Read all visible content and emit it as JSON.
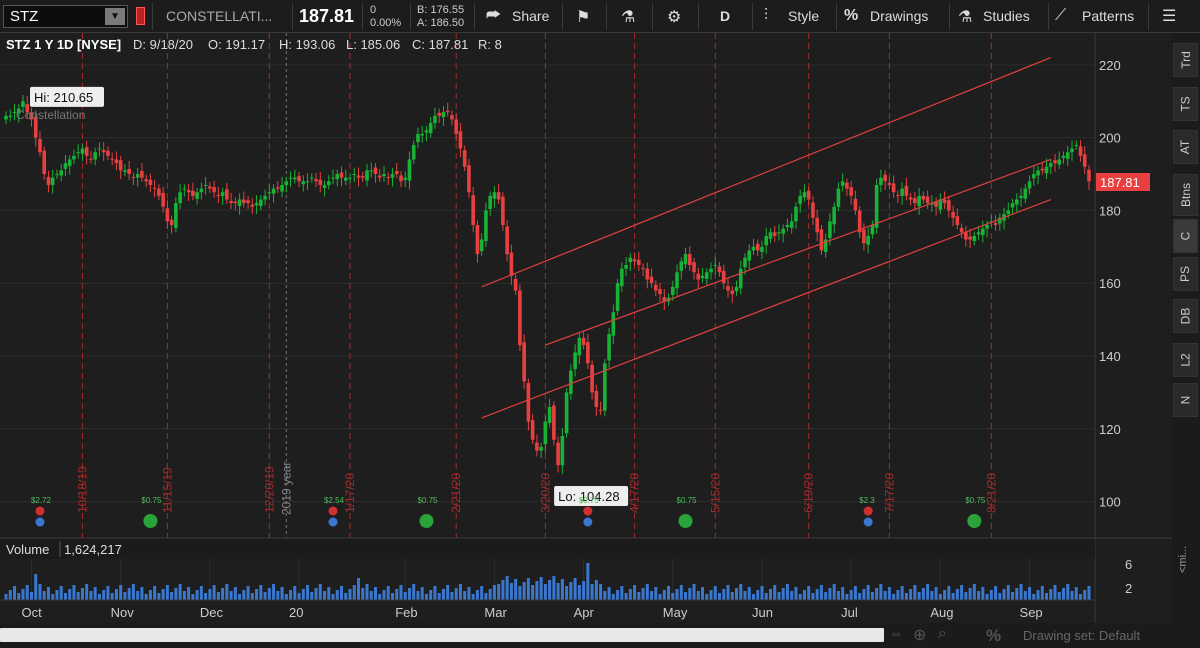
{
  "toolbar": {
    "symbol": "STZ",
    "company": "CONSTELLATI...",
    "last": "187.81",
    "change": "0",
    "change_pct": "0.00%",
    "bid": "B: 176.55",
    "ask": "A: 186.50",
    "share_label": "Share",
    "timeframe": "D",
    "style_label": "Style",
    "drawings_label": "Drawings",
    "studies_label": "Studies",
    "patterns_label": "Patterns"
  },
  "info": {
    "title": "STZ 1 Y 1D [NYSE]",
    "date": "D: 9/18/20",
    "open": "O: 191.17",
    "high": "H: 193.06",
    "low": "L: 185.06",
    "close": "C: 187.81",
    "range": "R: 8"
  },
  "rail": [
    "Trd",
    "TS",
    "AT",
    "Btns",
    "C",
    "PS",
    "DB",
    "L2",
    "N"
  ],
  "chart_data": {
    "type": "candlestick",
    "title": "STZ 1 Y 1D [NYSE]",
    "price_axis": [
      220,
      200,
      180,
      160,
      140,
      120,
      100
    ],
    "ylim": [
      90,
      226
    ],
    "last_price": "187.81",
    "hi_label": "Hi: 210.65",
    "lo_label": "Lo: 104.28",
    "watermark": "Constellation",
    "year_marker": "2019 year",
    "x_months": [
      "Oct",
      "Nov",
      "Dec",
      "20",
      "Feb",
      "Mar",
      "Apr",
      "May",
      "Jun",
      "Jul",
      "Aug",
      "Sep"
    ],
    "event_dates": [
      "10/18/19",
      "11/15/19",
      "12/20/19",
      "1/17/20",
      "2/21/20",
      "3/20/20",
      "4/17/20",
      "5/15/20",
      "6/19/20",
      "7/17/20",
      "8/21/20"
    ],
    "dividends": [
      {
        "label": "$2.72",
        "type": "earnings"
      },
      {
        "label": "$0.75",
        "type": "dividend"
      },
      {
        "label": "$2.54",
        "type": "earnings"
      },
      {
        "label": "$0.75",
        "type": "dividend"
      },
      {
        "label": "$0.75",
        "type": "earnings"
      },
      {
        "label": "$0.75",
        "type": "dividend"
      },
      {
        "label": "$2.3",
        "type": "earnings"
      },
      {
        "label": "$0.75",
        "type": "dividend"
      }
    ],
    "closes": [
      206,
      206,
      207,
      208,
      210,
      207,
      205,
      200,
      196,
      190,
      187,
      189,
      190,
      191,
      193,
      194,
      195,
      196,
      197,
      195,
      194,
      196,
      197,
      196,
      195,
      194,
      193,
      191,
      191,
      190,
      189,
      190,
      189,
      188,
      187,
      186,
      184,
      181,
      177,
      176,
      182,
      185,
      186,
      185,
      184,
      185,
      186,
      187,
      186,
      185,
      184,
      185,
      183,
      182,
      182,
      183,
      182,
      182,
      181,
      182,
      183,
      184,
      185,
      186,
      186,
      187,
      188,
      189,
      189,
      188,
      188,
      188,
      189,
      188,
      187,
      187,
      188,
      189,
      190,
      189,
      189,
      189,
      190,
      189,
      189,
      191,
      191,
      190,
      189,
      190,
      189,
      190,
      190,
      188,
      189,
      194,
      198,
      201,
      201,
      202,
      204,
      206,
      206,
      207,
      207,
      205,
      201,
      197,
      192,
      185,
      176,
      168,
      172,
      180,
      184,
      185,
      183,
      176,
      168,
      162,
      158,
      143,
      133,
      122,
      117,
      114,
      115,
      122,
      126,
      117,
      110,
      118,
      130,
      136,
      141,
      145,
      143,
      138,
      130,
      126,
      125,
      138,
      146,
      152,
      160,
      164,
      165,
      167,
      166,
      165,
      164,
      161,
      160,
      158,
      157,
      155,
      156,
      159,
      163,
      166,
      168,
      165,
      163,
      161,
      162,
      163,
      164,
      165,
      163,
      160,
      158,
      157,
      159,
      164,
      167,
      169,
      170,
      169,
      170,
      173,
      174,
      173,
      174,
      175,
      176,
      177,
      181,
      184,
      185,
      183,
      178,
      174,
      169,
      172,
      177,
      181,
      186,
      188,
      186,
      184,
      180,
      174,
      171,
      173,
      176,
      187,
      189,
      188,
      187,
      185,
      184,
      186,
      184,
      183,
      182,
      184,
      183,
      182,
      182,
      181,
      183,
      182,
      180,
      178,
      176,
      174,
      172,
      172,
      173,
      174,
      175,
      176,
      177,
      176,
      178,
      179,
      180,
      182,
      183,
      184,
      186,
      188,
      190,
      191,
      191,
      192,
      193,
      193,
      194,
      195,
      196,
      197,
      198,
      195,
      192,
      188
    ],
    "volume_axis": [
      "6",
      "2"
    ],
    "volume_label": "Volume",
    "volume_value": "1,624,217",
    "channel_lines": [
      {
        "from": [
          112,
          159
        ],
        "to": [
          246,
          222
        ]
      },
      {
        "from": [
          112,
          123
        ],
        "to": [
          246,
          183
        ]
      },
      {
        "from": [
          127,
          143
        ],
        "to": [
          246,
          194
        ]
      }
    ]
  },
  "bottom": {
    "drawing_set": "Drawing set: Default",
    "percent_label": "%",
    "collapse_label": "<mi..."
  },
  "colors": {
    "up": "#18b236",
    "down": "#e84040",
    "channel": "#e04040",
    "grid": "#2c2c2c",
    "event_line": "#a42a2a"
  }
}
